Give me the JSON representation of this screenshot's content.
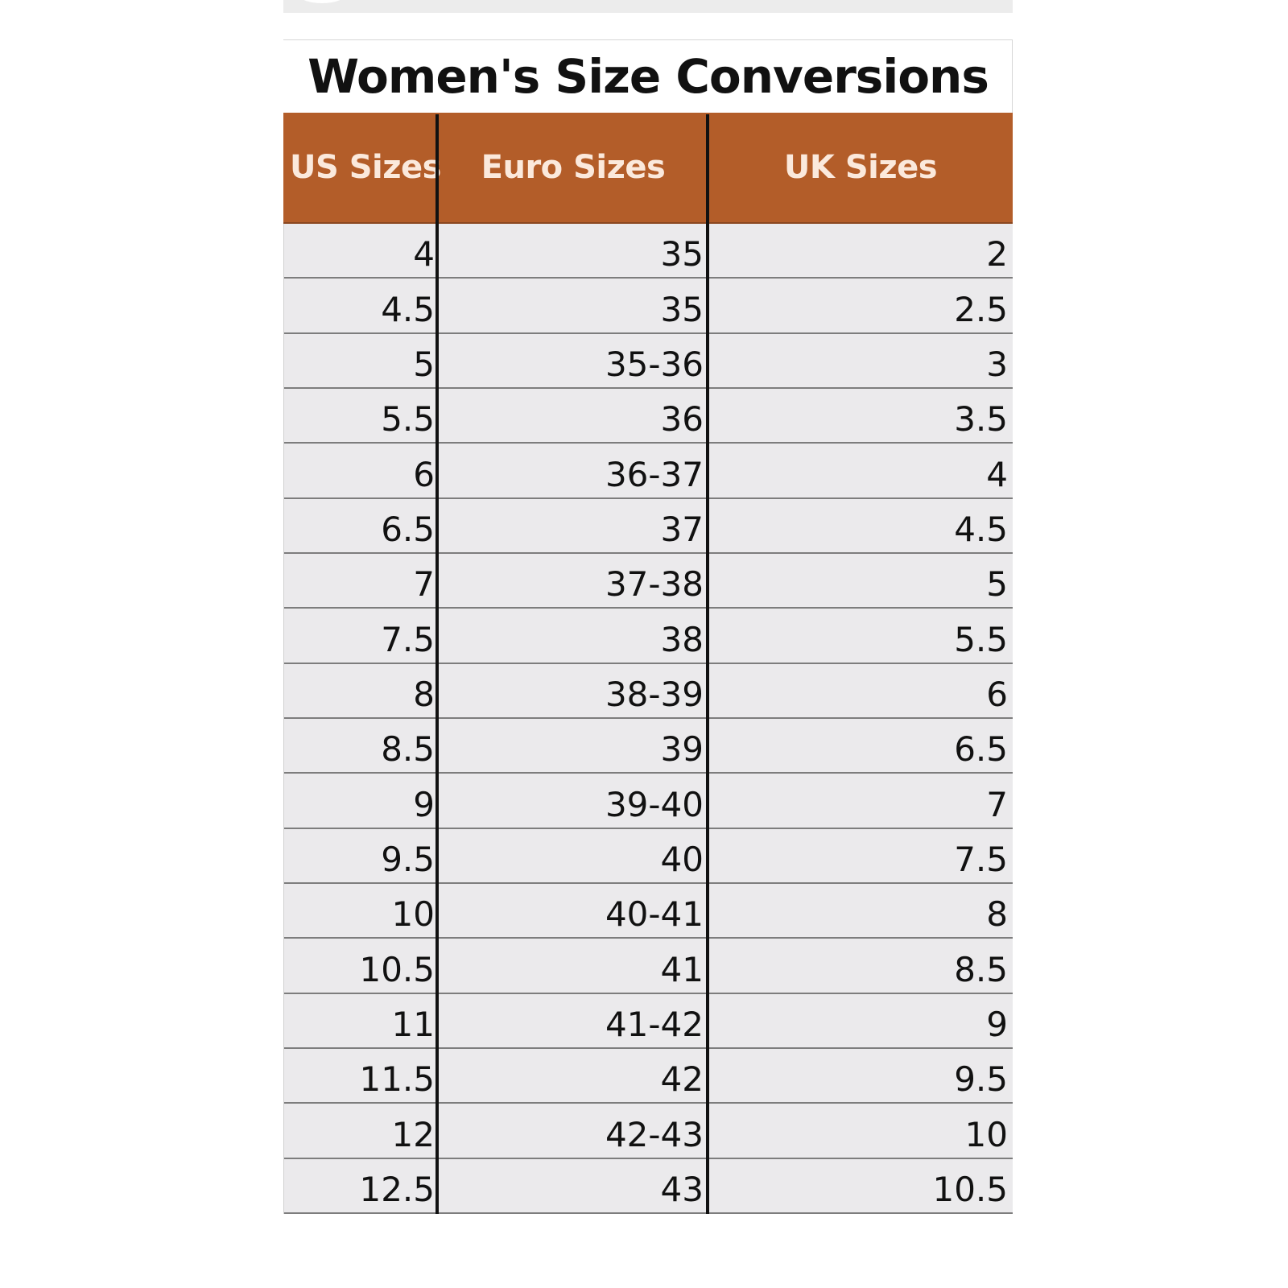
{
  "title": "Women's Size Conversions",
  "columns": [
    "US Sizes",
    "Euro Sizes",
    "UK Sizes"
  ],
  "rows": [
    [
      "4",
      "35",
      "2"
    ],
    [
      "4.5",
      "35",
      "2.5"
    ],
    [
      "5",
      "35-36",
      "3"
    ],
    [
      "5.5",
      "36",
      "3.5"
    ],
    [
      "6",
      "36-37",
      "4"
    ],
    [
      "6.5",
      "37",
      "4.5"
    ],
    [
      "7",
      "37-38",
      "5"
    ],
    [
      "7.5",
      "38",
      "5.5"
    ],
    [
      "8",
      "38-39",
      "6"
    ],
    [
      "8.5",
      "39",
      "6.5"
    ],
    [
      "9",
      "39-40",
      "7"
    ],
    [
      "9.5",
      "40",
      "7.5"
    ],
    [
      "10",
      "40-41",
      "8"
    ],
    [
      "10.5",
      "41",
      "8.5"
    ],
    [
      "11",
      "41-42",
      "9"
    ],
    [
      "11.5",
      "42",
      "9.5"
    ],
    [
      "12",
      "42-43",
      "10"
    ],
    [
      "12.5",
      "43",
      "10.5"
    ]
  ],
  "colors": {
    "header_background": "#b35d29",
    "header_text": "#fbe9dc",
    "body_background": "#ebeaec",
    "row_rule": "#7d7d7d",
    "column_rule": "#111111"
  }
}
